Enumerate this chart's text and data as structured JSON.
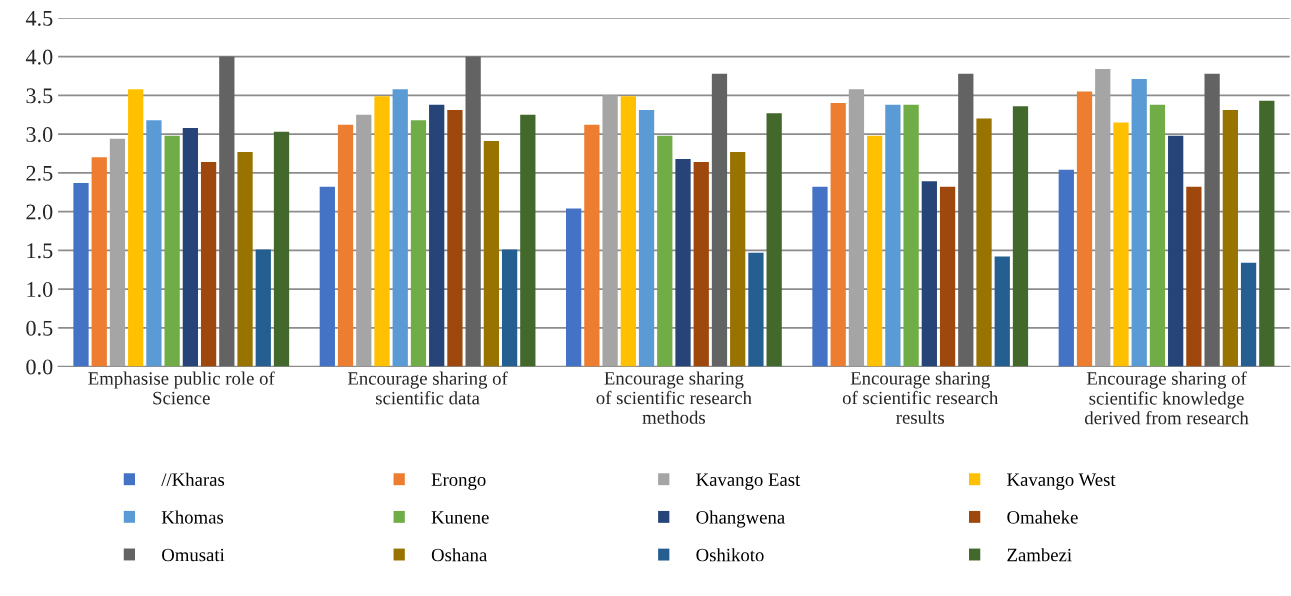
{
  "chart_data": {
    "type": "bar",
    "categories": [
      "Emphasise public role of\nScience",
      "Encourage sharing of\nscientific data",
      "Encourage sharing\nof scientific research\nmethods",
      "Encourage sharing\nof scientific research\nresults",
      "Encourage sharing of\nscientific knowledge\nderived from research"
    ],
    "series": [
      {
        "name": "//Kharas",
        "color": "#4472c4",
        "values": [
          2.37,
          2.32,
          2.04,
          2.32,
          2.54
        ]
      },
      {
        "name": "Erongo",
        "color": "#ed7d31",
        "values": [
          2.7,
          3.12,
          3.12,
          3.4,
          3.55
        ]
      },
      {
        "name": "Kavango East",
        "color": "#a5a5a5",
        "values": [
          2.94,
          3.25,
          3.5,
          3.58,
          3.84
        ]
      },
      {
        "name": "Kavango West",
        "color": "#ffc000",
        "values": [
          3.58,
          3.49,
          3.49,
          2.98,
          3.15
        ]
      },
      {
        "name": "Khomas",
        "color": "#5b9bd5",
        "values": [
          3.18,
          3.58,
          3.31,
          3.38,
          3.71
        ]
      },
      {
        "name": "Kunene",
        "color": "#70ad47",
        "values": [
          2.98,
          3.18,
          2.98,
          3.38,
          3.38
        ]
      },
      {
        "name": "Ohangwena",
        "color": "#264478",
        "values": [
          3.08,
          3.38,
          2.68,
          2.39,
          2.98
        ]
      },
      {
        "name": "Omaheke",
        "color": "#9e480e",
        "values": [
          2.64,
          3.31,
          2.64,
          2.32,
          2.32
        ]
      },
      {
        "name": "Omusati",
        "color": "#636363",
        "values": [
          4.0,
          4.0,
          3.78,
          3.78,
          3.78
        ]
      },
      {
        "name": "Oshana",
        "color": "#997300",
        "values": [
          2.77,
          2.91,
          2.77,
          3.2,
          3.31
        ]
      },
      {
        "name": "Oshikoto",
        "color": "#255e91",
        "values": [
          1.51,
          1.51,
          1.47,
          1.42,
          1.34
        ]
      },
      {
        "name": "Zambezi",
        "color": "#43682b",
        "values": [
          3.03,
          3.25,
          3.27,
          3.36,
          3.43
        ]
      }
    ],
    "ylim": [
      0,
      4.5
    ],
    "yticks": [
      {
        "value": 0,
        "label": "0.0"
      },
      {
        "value": 0.5,
        "label": "0.5"
      },
      {
        "value": 1,
        "label": "1.0"
      },
      {
        "value": 1.5,
        "label": "1.5"
      },
      {
        "value": 2,
        "label": "2.0"
      },
      {
        "value": 2.5,
        "label": "2.5"
      },
      {
        "value": 3,
        "label": "3.0"
      },
      {
        "value": 3.5,
        "label": "3.5"
      },
      {
        "value": 4,
        "label": "4.0"
      },
      {
        "value": 4.5,
        "label": "4.5"
      }
    ],
    "grid": "y",
    "legend": "bottom"
  }
}
